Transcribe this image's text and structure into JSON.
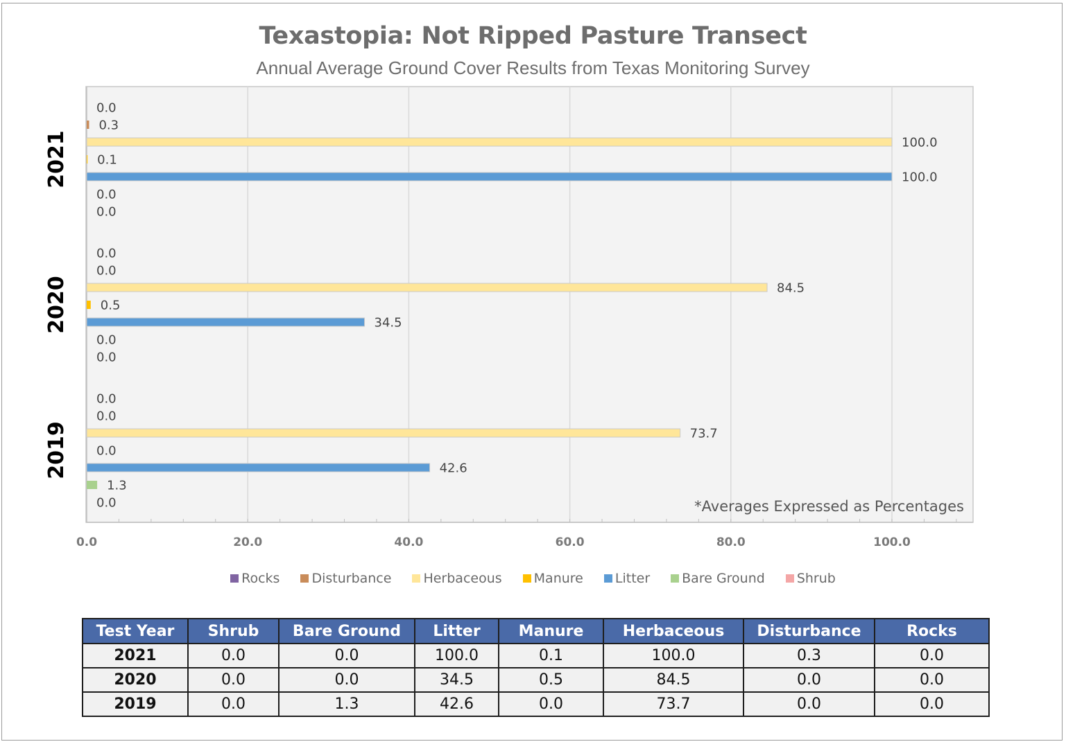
{
  "chart_data": {
    "type": "bar",
    "orientation": "horizontal",
    "title": "Texastopia: Not Ripped Pasture Transect",
    "subtitle": "Annual Average Ground Cover Results from Texas Monitoring Survey",
    "categories": [
      "2021",
      "2020",
      "2019"
    ],
    "series": [
      {
        "name": "Rocks",
        "color": "#8064a2",
        "values": [
          0.0,
          0.0,
          0.0
        ]
      },
      {
        "name": "Disturbance",
        "color": "#c98c5a",
        "values": [
          0.3,
          0.0,
          0.0
        ]
      },
      {
        "name": "Herbaceous",
        "color": "#ffe699",
        "values": [
          100.0,
          84.5,
          73.7
        ]
      },
      {
        "name": "Manure",
        "color": "#ffc000",
        "values": [
          0.1,
          0.5,
          0.0
        ]
      },
      {
        "name": "Litter",
        "color": "#5b9bd5",
        "values": [
          100.0,
          34.5,
          42.6
        ]
      },
      {
        "name": "Bare Ground",
        "color": "#a9d18e",
        "values": [
          0.0,
          0.0,
          1.3
        ]
      },
      {
        "name": "Shrub",
        "color": "#f4a6a6",
        "values": [
          0.0,
          0.0,
          0.0
        ]
      }
    ],
    "x_ticks": [
      "0.0",
      "20.0",
      "40.0",
      "60.0",
      "80.0",
      "100.0"
    ],
    "xlim": [
      0,
      110
    ],
    "grid": true,
    "legend_position": "bottom",
    "annotation": "*Averages Expressed as Percentages"
  },
  "table": {
    "headers": [
      "Test Year",
      "Shrub",
      "Bare Ground",
      "Litter",
      "Manure",
      "Herbaceous",
      "Disturbance",
      "Rocks"
    ],
    "rows": [
      [
        "2021",
        "0.0",
        "0.0",
        "100.0",
        "0.1",
        "100.0",
        "0.3",
        "0.0"
      ],
      [
        "2020",
        "0.0",
        "0.0",
        "34.5",
        "0.5",
        "84.5",
        "0.0",
        "0.0"
      ],
      [
        "2019",
        "0.0",
        "1.3",
        "42.6",
        "0.0",
        "73.7",
        "0.0",
        "0.0"
      ]
    ]
  }
}
